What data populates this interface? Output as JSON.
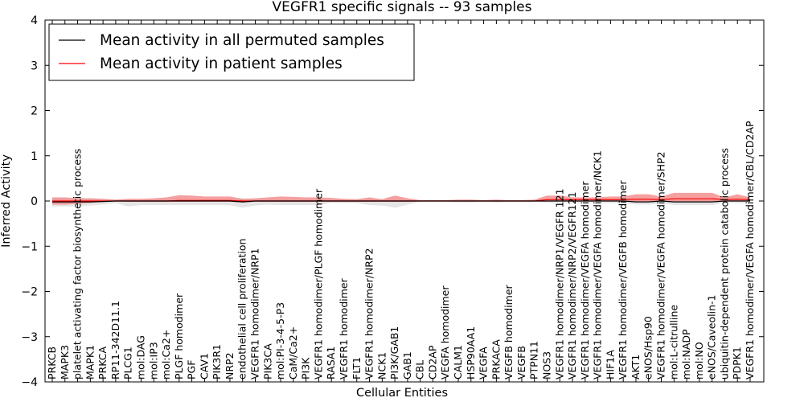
{
  "chart_data": {
    "type": "line",
    "title": "VEGFR1 specific signals -- 93 samples",
    "xlabel": "Cellular Entities",
    "ylabel": "Inferred Activity",
    "ylim": [
      -4,
      4
    ],
    "yticks": [
      "−4",
      "−3",
      "−2",
      "−1",
      "0",
      "1",
      "2",
      "3",
      "4"
    ],
    "grid": false,
    "legend_position": "top-left",
    "categories": [
      "PRKCB",
      "MAPK3",
      "platelet activating factor biosynthetic process",
      "MAPK1",
      "PRKCA",
      "RP11-342D11.1",
      "PLCG1",
      "mol:DAG",
      "mol:IP3",
      "mol:Ca2+",
      "PLGF homodimer",
      "PGF",
      "CAV1",
      "PIK3R1",
      "NRP2",
      "endothelial cell proliferation",
      "VEGFR1 homodimer/NRP1",
      "PIK3CA",
      "mol:PI-3-4-5-P3",
      "CaM/Ca2+",
      "PI3K",
      "VEGFR1 homodimer/PLGF homodimer",
      "RASA1",
      "VEGFR1 homodimer",
      "FLT1",
      "VEGFR1 homodimer/NRP2",
      "NCK1",
      "PI3K/GAB1",
      "GAB1",
      "CBL",
      "CD2AP",
      "VEGFA homodimer",
      "CALM1",
      "HSP90AA1",
      "VEGFA",
      "PRKACA",
      "VEGFB homodimer",
      "VEGFB",
      "PTPN11",
      "NOS3",
      "VEGFR1 homodimer/NRP1/VEGFR 121",
      "VEGFR1 homodimer/NRP2/VEGFR121",
      "VEGFR1 homodimer/VEGFA homodimer",
      "VEGFR1 homodimer/VEGFA homodimer/NCK1",
      "HIF1A",
      "VEGFR1 homodimer/VEGFB homodimer",
      "AKT1",
      "eNOS/Hsp90",
      "VEGFR1 homodimer/VEGFA homodimer/SHP2",
      "mol:L-citrulline",
      "mol:NADP",
      "mol:NO",
      "eNOS/Caveolin-1",
      "ubiquitin-dependent protein catabolic process",
      "PDPK1",
      "VEGFR1 homodimer/VEGFA homodimer/CBL/CD2AP"
    ],
    "series": [
      {
        "name": "Mean activity in all permuted samples",
        "color": "#000000",
        "band_color": "#e0e0e0",
        "values": [
          -0.02,
          -0.02,
          -0.02,
          -0.02,
          -0.01,
          0.0,
          0.0,
          0.0,
          0.0,
          0.0,
          0.0,
          0.0,
          0.0,
          0.0,
          0.0,
          -0.02,
          0.0,
          0.0,
          0.0,
          0.0,
          0.0,
          0.0,
          0.0,
          0.0,
          0.0,
          0.0,
          0.0,
          0.0,
          0.0,
          0.0,
          0.0,
          0.0,
          0.0,
          0.0,
          0.0,
          0.0,
          0.0,
          0.0,
          0.0,
          0.0,
          0.0,
          0.0,
          0.0,
          0.0,
          0.0,
          0.0,
          -0.02,
          -0.02,
          0.0,
          -0.02,
          -0.02,
          -0.02,
          -0.02,
          0.0,
          0.0,
          0.0
        ],
        "band_lower": [
          -0.12,
          -0.12,
          -0.12,
          -0.1,
          -0.08,
          -0.05,
          -0.12,
          -0.09,
          -0.09,
          -0.09,
          -0.09,
          -0.09,
          -0.09,
          -0.09,
          -0.09,
          -0.15,
          -0.1,
          -0.08,
          -0.09,
          -0.09,
          -0.09,
          -0.09,
          -0.04,
          -0.05,
          -0.05,
          -0.09,
          -0.1,
          -0.15,
          -0.08,
          -0.01,
          -0.01,
          -0.01,
          -0.04,
          -0.04,
          -0.02,
          -0.04,
          -0.02,
          -0.02,
          -0.02,
          -0.04,
          -0.05,
          -0.05,
          -0.05,
          -0.05,
          -0.05,
          -0.05,
          -0.08,
          -0.08,
          -0.05,
          -0.09,
          -0.09,
          -0.09,
          -0.09,
          -0.04,
          -0.05,
          -0.05
        ],
        "band_upper": [
          0.06,
          0.06,
          0.06,
          0.06,
          0.04,
          0.03,
          0.04,
          0.04,
          0.04,
          0.04,
          0.05,
          0.05,
          0.05,
          0.05,
          0.05,
          0.06,
          0.05,
          0.05,
          0.05,
          0.05,
          0.05,
          0.05,
          0.03,
          0.04,
          0.04,
          0.05,
          0.04,
          0.06,
          0.04,
          0.01,
          0.01,
          0.01,
          0.02,
          0.02,
          0.01,
          0.02,
          0.01,
          0.01,
          0.01,
          0.02,
          0.03,
          0.03,
          0.03,
          0.03,
          0.03,
          0.03,
          0.05,
          0.05,
          0.04,
          0.05,
          0.05,
          0.05,
          0.05,
          0.03,
          0.03,
          0.03
        ]
      },
      {
        "name": "Mean activity in patient samples",
        "color": "#ff0000",
        "band_color": "#f08080",
        "values": [
          0.0,
          0.0,
          0.0,
          0.0,
          0.0,
          0.0,
          0.0,
          0.0,
          0.0,
          0.0,
          0.01,
          0.01,
          0.01,
          0.01,
          0.01,
          0.0,
          0.0,
          0.0,
          0.0,
          0.0,
          0.0,
          0.0,
          0.0,
          0.0,
          0.0,
          0.0,
          0.0,
          0.0,
          0.0,
          0.0,
          0.0,
          0.0,
          0.0,
          0.0,
          0.0,
          0.0,
          0.0,
          0.0,
          0.0,
          0.03,
          0.03,
          0.03,
          0.03,
          0.03,
          0.03,
          0.03,
          0.04,
          0.04,
          0.03,
          0.05,
          0.05,
          0.05,
          0.05,
          0.03,
          0.04,
          0.03
        ],
        "band_lower": [
          -0.08,
          -0.08,
          -0.06,
          -0.04,
          -0.02,
          -0.01,
          -0.02,
          -0.02,
          -0.02,
          -0.02,
          -0.02,
          -0.02,
          -0.02,
          -0.02,
          -0.02,
          -0.03,
          -0.02,
          -0.02,
          -0.02,
          -0.02,
          -0.02,
          -0.02,
          -0.02,
          -0.02,
          -0.02,
          -0.02,
          -0.02,
          -0.02,
          -0.02,
          -0.01,
          -0.01,
          -0.01,
          -0.01,
          -0.01,
          -0.01,
          -0.01,
          -0.01,
          -0.01,
          -0.01,
          -0.01,
          -0.01,
          -0.01,
          -0.01,
          -0.01,
          -0.01,
          -0.01,
          -0.01,
          -0.01,
          -0.01,
          -0.01,
          -0.01,
          -0.01,
          -0.01,
          -0.01,
          -0.01,
          -0.01
        ],
        "band_upper": [
          0.08,
          0.08,
          0.06,
          0.06,
          0.05,
          0.03,
          0.05,
          0.05,
          0.06,
          0.08,
          0.13,
          0.12,
          0.1,
          0.1,
          0.1,
          0.05,
          0.06,
          0.08,
          0.1,
          0.09,
          0.08,
          0.08,
          0.07,
          0.05,
          0.04,
          0.08,
          0.04,
          0.12,
          0.06,
          0.02,
          0.02,
          0.02,
          0.03,
          0.03,
          0.02,
          0.03,
          0.02,
          0.02,
          0.03,
          0.12,
          0.12,
          0.08,
          0.08,
          0.08,
          0.1,
          0.1,
          0.15,
          0.15,
          0.1,
          0.18,
          0.18,
          0.18,
          0.18,
          0.08,
          0.15,
          0.08
        ]
      }
    ]
  }
}
